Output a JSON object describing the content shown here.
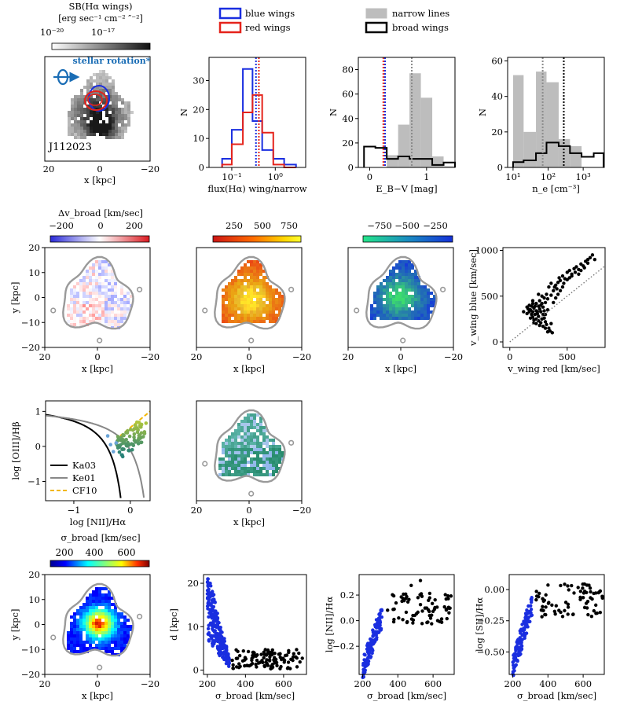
{
  "legend_top": {
    "blue_wings": "blue wings",
    "red_wings": "red wings",
    "narrow_lines": "narrow lines",
    "broad_wings": "broad wings"
  },
  "colors": {
    "blue": "#1a2ee0",
    "red": "#e5231b",
    "gray": "#8c8c8c",
    "lightgray": "#bdbdbd"
  },
  "panels": {
    "sb_map": {
      "cbar_label": "SB(Hα wings)",
      "cbar_units": "[erg sec⁻¹ cm⁻² ″⁻²]",
      "cbar_ticks": [
        "10⁻²⁰",
        "10⁻¹⁷"
      ],
      "annotation": "stellar rotation*",
      "object": "J112023",
      "xlabel": "x [kpc]",
      "xticks": [
        "20",
        "0",
        "−20"
      ]
    },
    "dv_map": {
      "cbar_label": "Δv_broad [km/sec]",
      "cbar_ticks": [
        "−200",
        "0",
        "200"
      ],
      "xlabel": "x [kpc]",
      "ylabel": "y [kpc]",
      "ticks": [
        "20",
        "0",
        "−20"
      ],
      "yticks": [
        "20",
        "10",
        "0",
        "−10",
        "−20"
      ]
    },
    "vmax_map": {
      "cbar_ticks": [
        "250",
        "500",
        "750"
      ],
      "xlabel": "x [kpc]",
      "ticks": [
        "20",
        "0",
        "−20"
      ]
    },
    "vmin_map": {
      "cbar_ticks": [
        "−750",
        "−500",
        "−250"
      ],
      "xlabel": "x [kpc]",
      "ticks": [
        "20",
        "0",
        "−20"
      ]
    },
    "bpt_map": {
      "xlabel": "x [kpc]",
      "ticks": [
        "20",
        "0",
        "−20"
      ]
    },
    "sigma_map": {
      "cbar_label": "σ_broad [km/sec]",
      "cbar_ticks": [
        "200",
        "400",
        "600"
      ],
      "xlabel": "x [kpc]",
      "ylabel": "y [kpc]",
      "ticks": [
        "20",
        "0",
        "−20"
      ],
      "yticks": [
        "20",
        "10",
        "0",
        "−10",
        "−20"
      ]
    },
    "bpt": {
      "xlabel": "log [NII]/Hα",
      "ylabel": "log [OIII]/Hβ",
      "legend": [
        "Ka03",
        "Ke01",
        "CF10"
      ],
      "xticks": [
        "−1",
        "0"
      ],
      "yticks": [
        "1",
        "0",
        "−1"
      ]
    }
  },
  "chart_data": [
    {
      "type": "bar",
      "id": "flux_ratio_hist",
      "xlabel": "flux(Hα) wing/narrow",
      "ylabel": "N",
      "xscale": "log",
      "xlim": [
        0.03,
        5
      ],
      "ylim": [
        0,
        38
      ],
      "xticks": [
        "10⁻¹",
        "10⁰"
      ],
      "yticks": [
        "0",
        "10",
        "20",
        "30"
      ],
      "bin_edges": [
        0.06,
        0.1,
        0.18,
        0.3,
        0.5,
        0.9,
        1.6,
        3.0
      ],
      "series": [
        {
          "name": "blue wings",
          "values": [
            3,
            13,
            34,
            16,
            6,
            3,
            1
          ]
        },
        {
          "name": "red wings",
          "values": [
            1,
            8,
            19,
            25,
            12,
            1,
            0
          ]
        }
      ],
      "medians": {
        "blue wings": 0.36,
        "red wings": 0.42
      }
    },
    {
      "type": "bar",
      "id": "ebv_hist",
      "xlabel": "E_B−V [mag]",
      "ylabel": "N",
      "xlim": [
        -0.2,
        1.5
      ],
      "ylim": [
        0,
        90
      ],
      "xticks": [
        "0",
        "1"
      ],
      "yticks": [
        "0",
        "20",
        "40",
        "60",
        "80"
      ],
      "bin_edges": [
        -0.1,
        0.1,
        0.3,
        0.5,
        0.7,
        0.9,
        1.1,
        1.3,
        1.5
      ],
      "series": [
        {
          "name": "narrow lines",
          "values": [
            0,
            0,
            10,
            35,
            77,
            57,
            9,
            1
          ]
        },
        {
          "name": "broad wings",
          "values": [
            17,
            16,
            7,
            9,
            7,
            7,
            2,
            4
          ]
        }
      ],
      "medians": {
        "blue wings": 0.27,
        "red wings": 0.24,
        "narrow lines": 0.74
      }
    },
    {
      "type": "bar",
      "id": "ne_hist",
      "xlabel": "n_e [cm⁻³]",
      "ylabel": "N",
      "xscale": "log",
      "xlim": [
        7,
        4000
      ],
      "ylim": [
        0,
        62
      ],
      "xticks": [
        "10¹",
        "10²",
        "10³"
      ],
      "yticks": [
        "0",
        "20",
        "40",
        "60"
      ],
      "bin_edges": [
        10,
        20,
        45,
        90,
        200,
        420,
        900,
        2000,
        3800
      ],
      "series": [
        {
          "name": "narrow lines",
          "values": [
            52,
            20,
            54,
            48,
            16,
            12,
            0,
            0
          ]
        },
        {
          "name": "broad wings",
          "values": [
            3,
            4,
            8,
            14,
            12,
            8,
            6,
            8
          ]
        }
      ],
      "medians": {
        "narrow lines": 70,
        "broad wings": 280
      }
    },
    {
      "type": "scatter",
      "id": "vwing",
      "xlabel": "v_wing red [km/sec]",
      "ylabel": "v_wing blue [km/sec]",
      "xlim": [
        -60,
        830
      ],
      "ylim": [
        -60,
        1030
      ],
      "xticks": [
        "0",
        "500"
      ],
      "yticks": [
        "0",
        "500",
        "1000"
      ],
      "points": [
        [
          120,
          330
        ],
        [
          150,
          380
        ],
        [
          170,
          400
        ],
        [
          180,
          350
        ],
        [
          190,
          300
        ],
        [
          200,
          420
        ],
        [
          210,
          370
        ],
        [
          220,
          390
        ],
        [
          230,
          340
        ],
        [
          240,
          310
        ],
        [
          250,
          280
        ],
        [
          260,
          360
        ],
        [
          270,
          400
        ],
        [
          280,
          250
        ],
        [
          290,
          300
        ],
        [
          300,
          260
        ],
        [
          310,
          220
        ],
        [
          320,
          190
        ],
        [
          330,
          350
        ],
        [
          340,
          150
        ],
        [
          350,
          120
        ],
        [
          360,
          200
        ],
        [
          370,
          100
        ],
        [
          250,
          520
        ],
        [
          280,
          500
        ],
        [
          310,
          430
        ],
        [
          330,
          470
        ],
        [
          360,
          510
        ],
        [
          380,
          560
        ],
        [
          390,
          600
        ],
        [
          400,
          620
        ],
        [
          410,
          580
        ],
        [
          420,
          650
        ],
        [
          430,
          700
        ],
        [
          440,
          670
        ],
        [
          460,
          720
        ],
        [
          480,
          690
        ],
        [
          500,
          760
        ],
        [
          520,
          780
        ],
        [
          540,
          740
        ],
        [
          560,
          800
        ],
        [
          580,
          820
        ],
        [
          600,
          790
        ],
        [
          620,
          850
        ],
        [
          640,
          830
        ],
        [
          660,
          880
        ],
        [
          680,
          900
        ],
        [
          700,
          920
        ],
        [
          720,
          950
        ],
        [
          740,
          900
        ],
        [
          200,
          450
        ],
        [
          150,
          310
        ],
        [
          180,
          260
        ],
        [
          210,
          240
        ],
        [
          230,
          200
        ],
        [
          260,
          180
        ],
        [
          230,
          420
        ],
        [
          260,
          450
        ],
        [
          300,
          480
        ],
        [
          320,
          520
        ],
        [
          340,
          600
        ],
        [
          360,
          640
        ],
        [
          380,
          430
        ],
        [
          400,
          480
        ],
        [
          420,
          520
        ],
        [
          440,
          560
        ],
        [
          460,
          600
        ],
        [
          470,
          640
        ],
        [
          500,
          680
        ],
        [
          520,
          700
        ],
        [
          540,
          720
        ],
        [
          570,
          760
        ],
        [
          600,
          740
        ],
        [
          620,
          780
        ],
        [
          650,
          810
        ],
        [
          680,
          860
        ],
        [
          200,
          330
        ],
        [
          220,
          300
        ],
        [
          240,
          330
        ],
        [
          270,
          330
        ],
        [
          300,
          340
        ],
        [
          290,
          380
        ],
        [
          310,
          300
        ],
        [
          280,
          420
        ],
        [
          250,
          390
        ],
        [
          190,
          390
        ],
        [
          170,
          330
        ],
        [
          160,
          360
        ],
        [
          210,
          210
        ],
        [
          230,
          250
        ],
        [
          250,
          230
        ],
        [
          270,
          210
        ],
        [
          290,
          170
        ],
        [
          310,
          150
        ],
        [
          330,
          110
        ],
        [
          200,
          270
        ]
      ]
    },
    {
      "type": "scatter",
      "id": "sigma_d",
      "xlabel": "σ_broad [km/sec]",
      "ylabel": "d [kpc]",
      "xlim": [
        180,
        720
      ],
      "ylim": [
        -1,
        22
      ],
      "xticks": [
        "200",
        "400",
        "600"
      ],
      "yticks": [
        "0",
        "10",
        "20"
      ],
      "series": [
        {
          "name": "blue",
          "range_x": [
            200,
            320
          ],
          "range_y": [
            1,
            21
          ]
        },
        {
          "name": "black",
          "range_x": [
            330,
            700
          ],
          "range_y": [
            0,
            5
          ]
        }
      ]
    },
    {
      "type": "scatter",
      "id": "sigma_n2",
      "xlabel": "σ_broad [km/sec]",
      "ylabel": "log [NII]/Hα",
      "xlim": [
        180,
        720
      ],
      "ylim": [
        -0.42,
        0.36
      ],
      "xticks": [
        "200",
        "400",
        "600"
      ],
      "yticks": [
        "0.2",
        "0.0",
        "−0.2"
      ]
    },
    {
      "type": "scatter",
      "id": "sigma_s2",
      "xlabel": "σ_broad [km/sec]",
      "ylabel": "log [SII]/Hα",
      "xlim": [
        180,
        720
      ],
      "ylim": [
        -0.68,
        0.12
      ],
      "xticks": [
        "200",
        "400",
        "600"
      ],
      "yticks": [
        "0.00",
        "−0.25",
        "−0.50"
      ]
    }
  ]
}
